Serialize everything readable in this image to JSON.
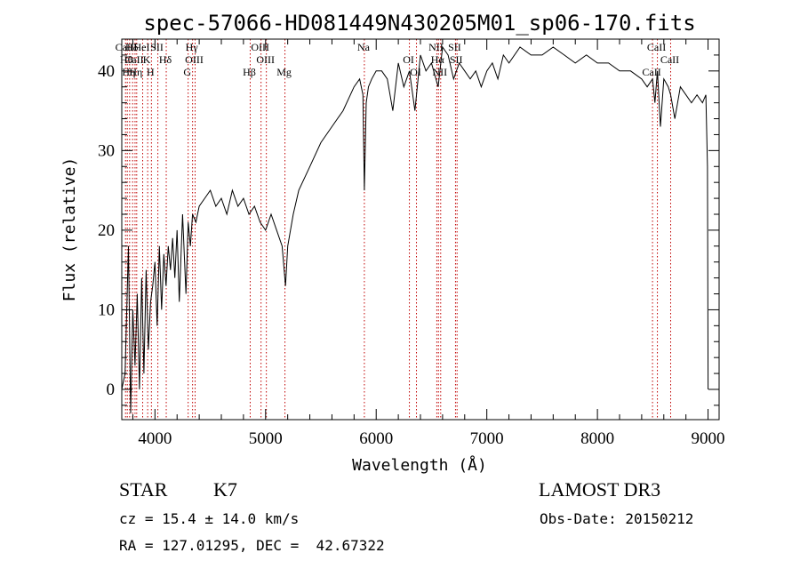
{
  "chart_data": {
    "type": "line",
    "title": "spec-57066-HD081449N430205M01_sp06-170.fits",
    "xlabel": "Wavelength (Å)",
    "ylabel": "Flux (relative)",
    "xlim": [
      3700,
      9100
    ],
    "ylim": [
      -3.8,
      44
    ],
    "xticks": [
      4000,
      5000,
      6000,
      7000,
      8000,
      9000
    ],
    "yticks": [
      0,
      10,
      20,
      30,
      40
    ],
    "series": [
      {
        "x": [
          3700,
          3730,
          3760,
          3780,
          3800,
          3820,
          3840,
          3860,
          3880,
          3900,
          3920,
          3940,
          3960,
          3980,
          4000,
          4020,
          4040,
          4060,
          4080,
          4100,
          4120,
          4140,
          4160,
          4180,
          4200,
          4220,
          4250,
          4280,
          4300,
          4320,
          4340,
          4370,
          4400,
          4450,
          4500,
          4550,
          4600,
          4650,
          4700,
          4750,
          4800,
          4850,
          4900,
          4950,
          5000,
          5050,
          5100,
          5150,
          5180,
          5200,
          5250,
          5300,
          5400,
          5500,
          5600,
          5700,
          5800,
          5850,
          5880,
          5893,
          5910,
          5930,
          5960,
          6000,
          6050,
          6100,
          6150,
          6200,
          6250,
          6300,
          6350,
          6400,
          6450,
          6500,
          6560,
          6600,
          6650,
          6700,
          6750,
          6800,
          6850,
          6900,
          6950,
          7000,
          7050,
          7100,
          7150,
          7200,
          7300,
          7400,
          7500,
          7600,
          7700,
          7800,
          7900,
          8000,
          8100,
          8200,
          8300,
          8400,
          8450,
          8498,
          8520,
          8542,
          8570,
          8600,
          8640,
          8662,
          8700,
          8750,
          8800,
          8850,
          8900,
          8950,
          8980,
          8995,
          9000
        ],
        "y": [
          0,
          2,
          18,
          -3,
          10,
          3,
          12,
          0,
          14,
          2,
          15,
          5,
          11,
          13,
          16,
          8,
          18,
          10,
          17,
          13,
          18,
          15,
          19,
          14,
          20,
          11,
          22,
          12,
          21,
          18,
          22,
          21,
          23,
          24,
          25,
          23,
          24,
          22,
          25,
          23,
          24,
          22,
          23,
          21,
          20,
          22,
          20,
          18,
          13,
          18,
          22,
          25,
          28,
          31,
          33,
          35,
          38,
          39,
          37,
          25,
          36,
          38,
          39,
          40,
          40,
          39,
          35,
          41,
          38,
          40,
          35,
          42,
          40,
          41,
          38,
          43,
          42,
          39,
          41,
          40,
          39,
          40,
          38,
          40,
          41,
          39,
          42,
          41,
          43,
          42,
          42,
          43,
          42,
          41,
          42,
          41,
          41,
          40,
          40,
          39,
          38,
          39,
          36,
          40,
          33,
          39,
          38,
          37,
          34,
          38,
          37,
          36,
          37,
          36,
          37,
          28,
          0
        ]
      }
    ],
    "lines": [
      {
        "wl": 3734,
        "label": "CaII"
      },
      {
        "wl": 3750,
        "label": "Hθ"
      },
      {
        "wl": 3771,
        "label": "Hη"
      },
      {
        "wl": 3798,
        "label": "Hδ"
      },
      {
        "wl": 3820,
        "label": "CaII"
      },
      {
        "wl": 3835,
        "label": "Hη"
      },
      {
        "wl": 3889,
        "label": "HeI"
      },
      {
        "wl": 3934,
        "label": "K"
      },
      {
        "wl": 3968,
        "label": "H"
      },
      {
        "wl": 4026,
        "label": "SII"
      },
      {
        "wl": 4102,
        "label": "Hδ"
      },
      {
        "wl": 4300,
        "label": "G"
      },
      {
        "wl": 4340,
        "label": "Hγ"
      },
      {
        "wl": 4363,
        "label": "OIII"
      },
      {
        "wl": 4861,
        "label": "Hβ"
      },
      {
        "wl": 4959,
        "label": "OIII"
      },
      {
        "wl": 5007,
        "label": "OIII"
      },
      {
        "wl": 5175,
        "label": "Mg"
      },
      {
        "wl": 5893,
        "label": "Na"
      },
      {
        "wl": 6300,
        "label": "OI"
      },
      {
        "wl": 6364,
        "label": "OI"
      },
      {
        "wl": 6548,
        "label": "NII"
      },
      {
        "wl": 6563,
        "label": "Hα"
      },
      {
        "wl": 6583,
        "label": "NII"
      },
      {
        "wl": 6717,
        "label": "SII"
      },
      {
        "wl": 6731,
        "label": "SII"
      },
      {
        "wl": 8498,
        "label": "CaII"
      },
      {
        "wl": 8542,
        "label": "CaII"
      },
      {
        "wl": 8662,
        "label": "CaII"
      }
    ]
  },
  "info": {
    "object_class": "STAR",
    "subclass": "K7",
    "survey": "LAMOST DR3",
    "redshift": "cz = 15.4 ± 14.0 km/s",
    "obs_date": "Obs-Date: 20150212",
    "coords": "RA = 127.01295, DEC =  42.67322"
  }
}
